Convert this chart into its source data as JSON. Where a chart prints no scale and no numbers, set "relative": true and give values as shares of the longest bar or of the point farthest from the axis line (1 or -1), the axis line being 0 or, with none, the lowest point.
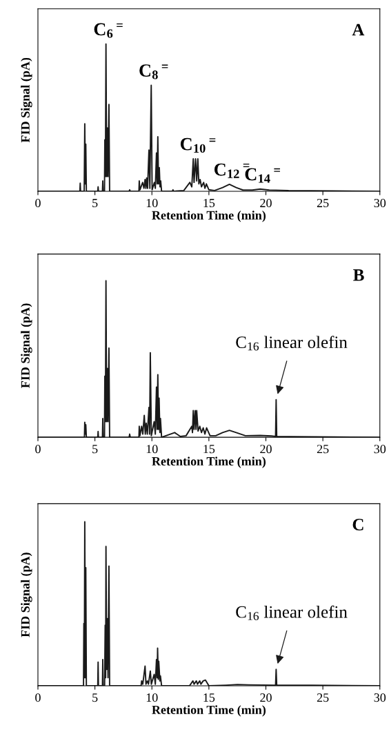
{
  "chart_data": [
    {
      "type": "line",
      "relative": true,
      "xlabel": "Retention Time (min)",
      "ylabel": "FID Signal (pA)",
      "xlim": [
        0,
        30
      ],
      "xticks": [
        0,
        5,
        10,
        15,
        20,
        25,
        30
      ],
      "tick_labels": "x",
      "grid": false,
      "series": [
        {
          "color": "#1a1a1a",
          "x": [
            0,
            3.68,
            3.71,
            3.74,
            4.06,
            4.11,
            4.16,
            4.2,
            4.25,
            5.25,
            5.28,
            5.31,
            5.66,
            5.69,
            5.72,
            5.84,
            5.87,
            5.92,
            5.97,
            6.03,
            6.09,
            6.15,
            6.23,
            6.29,
            8.0,
            8.05,
            8.1,
            8.86,
            8.89,
            8.95,
            9.19,
            9.3,
            9.4,
            9.47,
            9.54,
            9.62,
            9.74,
            9.82,
            9.94,
            10.02,
            10.22,
            10.3,
            10.4,
            10.46,
            10.52,
            10.58,
            10.65,
            10.71,
            10.77,
            10.85,
            11.8,
            11.85,
            11.9,
            12.8,
            13.33,
            13.5,
            13.63,
            13.7,
            13.83,
            13.93,
            14.03,
            14.12,
            14.23,
            14.35,
            14.54,
            14.65,
            14.78,
            15.0,
            15.5,
            16.2,
            16.8,
            17.4,
            18.0,
            18.8,
            19.5,
            20.3,
            22,
            26,
            30
          ],
          "values": [
            0,
            0,
            0.055,
            0,
            0,
            0.458,
            0.05,
            0.32,
            0,
            0,
            0.03,
            0,
            0,
            0.07,
            0,
            0,
            0.35,
            0.1,
            1,
            0.1,
            0.43,
            0.1,
            0.59,
            0,
            0,
            0.01,
            0,
            0,
            0.07,
            0.01,
            0.06,
            0.02,
            0.08,
            0.02,
            0.09,
            0.02,
            0.28,
            0.02,
            0.72,
            0.01,
            0.06,
            0.02,
            0.26,
            0.05,
            0.37,
            0.05,
            0.16,
            0.03,
            0.07,
            0,
            0,
            0.01,
            0,
            0.005,
            0.06,
            0.03,
            0.22,
            0.06,
            0.22,
            0.07,
            0.22,
            0.05,
            0.08,
            0.03,
            0.06,
            0.02,
            0.05,
            0.01,
            0.005,
            0.025,
            0.047,
            0.025,
            0.008,
            0.008,
            0.015,
            0.008,
            0.004,
            0.002,
            0
          ]
        }
      ],
      "annotations": [
        "A",
        {
          "text": "C$_{6}$$^{=}$",
          "x": 5.97,
          "y": 1
        },
        {
          "text": "C$_{8}$$^{=}$",
          "x": 9.94,
          "y": 0.72
        },
        {
          "text": "C$_{10}$$^{=}$",
          "x": 13.83,
          "y": 0.22
        },
        {
          "text": "C$_{12}$$^{=}$",
          "x": 16.8,
          "y": 0.047
        },
        {
          "text": "C$_{14}$$^{=}$",
          "x": 19.5,
          "y": 0.015
        }
      ]
    },
    {
      "type": "line",
      "relative": true,
      "xlabel": "Retention Time (min)",
      "ylabel": "FID Signal (pA)",
      "xlim": [
        0,
        30
      ],
      "xticks": [
        0,
        5,
        10,
        15,
        20,
        25,
        30
      ],
      "tick_labels": "x",
      "grid": false,
      "series": [
        {
          "color": "#1a1a1a",
          "x": [
            0,
            4.08,
            4.11,
            4.16,
            4.2,
            4.25,
            5.25,
            5.28,
            5.31,
            5.66,
            5.69,
            5.72,
            5.84,
            5.87,
            5.92,
            5.97,
            6.03,
            6.09,
            6.15,
            6.23,
            6.29,
            8.0,
            8.05,
            8.1,
            8.86,
            8.89,
            8.95,
            9.1,
            9.2,
            9.33,
            9.42,
            9.5,
            9.6,
            9.74,
            9.8,
            9.86,
            9.95,
            10.2,
            10.3,
            10.4,
            10.46,
            10.52,
            10.58,
            10.63,
            10.7,
            10.75,
            10.85,
            12.0,
            12.5,
            13.0,
            13.5,
            13.56,
            13.63,
            13.7,
            13.8,
            13.87,
            13.93,
            14.05,
            14.2,
            14.35,
            14.5,
            14.65,
            14.8,
            15.1,
            15.6,
            16.2,
            16.8,
            17.4,
            18.2,
            19.5,
            20.5,
            20.85,
            20.9,
            20.95,
            22,
            26,
            30
          ],
          "values": [
            0,
            0,
            0.096,
            0.02,
            0.08,
            0,
            0,
            0.037,
            0,
            0,
            0.12,
            0,
            0,
            0.39,
            0.1,
            1,
            0.1,
            0.44,
            0.1,
            0.57,
            0,
            0,
            0.02,
            0,
            0,
            0.07,
            0.01,
            0.07,
            0.02,
            0.14,
            0.02,
            0.09,
            0.02,
            0.19,
            0.02,
            0.54,
            0.01,
            0.1,
            0.02,
            0.32,
            0.05,
            0.4,
            0.05,
            0.25,
            0.03,
            0.12,
            0,
            0.03,
            0.005,
            0.01,
            0.07,
            0.03,
            0.17,
            0.05,
            0.17,
            0.05,
            0.17,
            0.04,
            0.07,
            0.03,
            0.06,
            0.02,
            0.06,
            0.01,
            0.01,
            0.03,
            0.044,
            0.03,
            0.01,
            0.012,
            0.008,
            0.005,
            0.24,
            0.005,
            0.004,
            0.002,
            0
          ]
        }
      ],
      "annotations": [
        "B",
        {
          "text": "C$_{16}$ linear olefin",
          "x": 20.9,
          "y": 0.24
        }
      ]
    },
    {
      "type": "line",
      "relative": true,
      "xlabel": "Retention Time (min)",
      "ylabel": "FID Signal (pA)",
      "xlim": [
        0,
        30
      ],
      "xticks": [
        0,
        5,
        10,
        15,
        20,
        25,
        30
      ],
      "tick_labels": "x",
      "grid": false,
      "series": [
        {
          "color": "#1a1a1a",
          "x": [
            0,
            4.0,
            4.03,
            4.07,
            4.11,
            4.16,
            4.2,
            4.25,
            5.25,
            5.28,
            5.31,
            5.66,
            5.69,
            5.72,
            5.85,
            5.9,
            5.94,
            5.97,
            6.03,
            6.09,
            6.15,
            6.23,
            6.29,
            9.05,
            9.1,
            9.2,
            9.4,
            9.48,
            9.6,
            9.7,
            9.86,
            9.95,
            10.2,
            10.3,
            10.4,
            10.46,
            10.5,
            10.56,
            10.6,
            10.7,
            10.75,
            10.85,
            13.3,
            13.6,
            13.7,
            13.9,
            14.0,
            14.2,
            14.3,
            14.5,
            14.7,
            15.0,
            16.5,
            17.5,
            18.5,
            20.85,
            20.9,
            20.95,
            24,
            30
          ],
          "values": [
            0,
            0,
            0.38,
            0.05,
            1,
            0.05,
            0.72,
            0,
            0,
            0.145,
            0,
            0,
            0.16,
            0,
            0,
            0.37,
            0.05,
            0.85,
            0.1,
            0.41,
            0.05,
            0.73,
            0,
            0,
            0.03,
            0.01,
            0.12,
            0.01,
            0.03,
            0.01,
            0.09,
            0.01,
            0.07,
            0.01,
            0.16,
            0.05,
            0.23,
            0.04,
            0.15,
            0.03,
            0.06,
            0,
            0,
            0.03,
            0.01,
            0.03,
            0.01,
            0.03,
            0.01,
            0.03,
            0.035,
            0,
            0.004,
            0.008,
            0.006,
            0.004,
            0.1,
            0.004,
            0.003,
            0
          ]
        }
      ],
      "annotations": [
        "C",
        {
          "text": "C$_{16}$ linear olefin",
          "x": 20.9,
          "y": 0.1
        }
      ]
    }
  ]
}
